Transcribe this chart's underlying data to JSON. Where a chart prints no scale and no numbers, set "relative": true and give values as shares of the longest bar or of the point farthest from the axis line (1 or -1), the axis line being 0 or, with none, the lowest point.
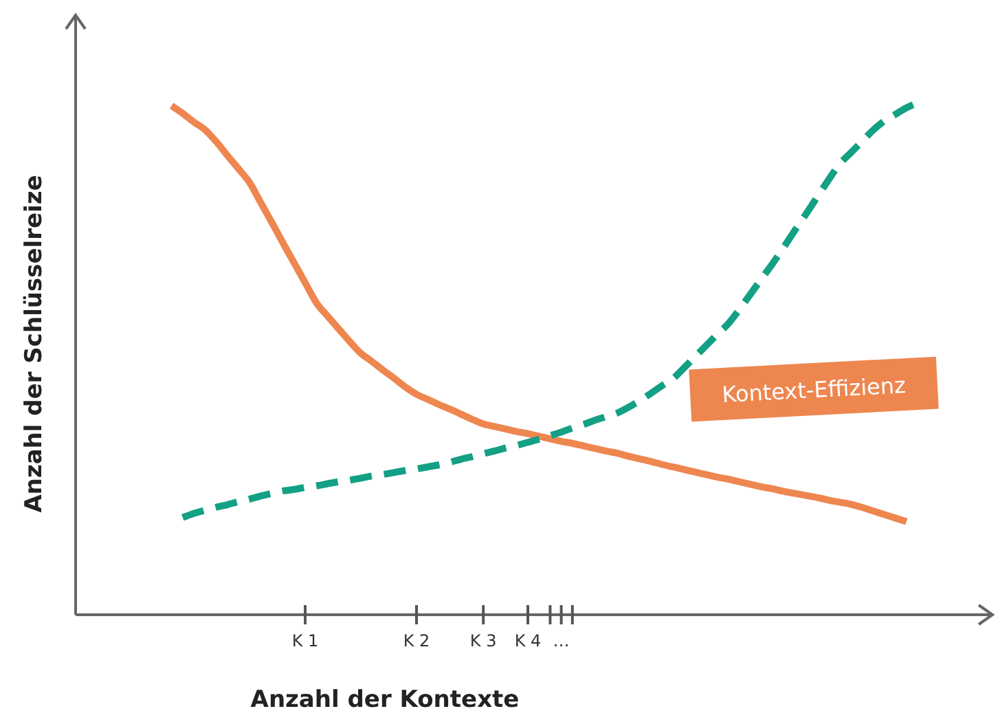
{
  "chart_data": {
    "type": "line",
    "relative": true,
    "xlabel": "Anzahl der Kontexte",
    "ylabel": "Anzahl der Schlüsselreize",
    "categories": [
      null,
      null,
      null,
      null,
      null,
      null,
      null,
      null,
      null,
      null,
      null,
      null,
      null,
      null,
      null,
      null,
      null,
      null,
      null,
      null,
      "K 1",
      null,
      null,
      null,
      null,
      null,
      null,
      null,
      null,
      null,
      "K 2",
      null,
      null,
      null,
      null,
      null,
      "K 3",
      null,
      null,
      null,
      "K 4",
      null,
      null,
      "…",
      null,
      null,
      null,
      null,
      null,
      null,
      null,
      null,
      null,
      null,
      null,
      null,
      null,
      null,
      null,
      null,
      null,
      null,
      null,
      null,
      null,
      null,
      null,
      null,
      null,
      null,
      null,
      null,
      null,
      null,
      null,
      null,
      null,
      null,
      null,
      null
    ],
    "tick_labels": "x",
    "grid": false,
    "series": [
      {
        "name": "Kontext-Effizienz",
        "color": "#ee8650",
        "line_style": "solid",
        "values": [
          null,
          null,
          null,
          null,
          null,
          null,
          null,
          null,
          0.995,
          0.98,
          0.963,
          0.948,
          0.925,
          0.898,
          0.872,
          0.845,
          0.806,
          0.767,
          0.727,
          0.688,
          0.649,
          0.61,
          0.584,
          0.559,
          0.534,
          0.511,
          0.495,
          0.478,
          0.462,
          0.445,
          0.431,
          0.421,
          0.411,
          0.402,
          0.392,
          0.382,
          0.373,
          0.368,
          0.363,
          0.358,
          0.354,
          0.349,
          0.344,
          0.339,
          0.335,
          0.33,
          0.325,
          0.32,
          0.316,
          0.31,
          0.305,
          0.3,
          0.294,
          0.289,
          0.284,
          0.279,
          0.274,
          0.269,
          0.265,
          0.26,
          0.255,
          0.25,
          0.246,
          0.241,
          0.237,
          0.233,
          0.229,
          0.224,
          0.22,
          0.216,
          0.21,
          0.203,
          0.196,
          0.189,
          0.182,
          null,
          null,
          null,
          null,
          null
        ]
      },
      {
        "color": "#13a085",
        "line_style": "dashed",
        "values": [
          null,
          null,
          null,
          null,
          null,
          null,
          null,
          null,
          null,
          0.19,
          0.198,
          0.204,
          0.21,
          0.215,
          0.221,
          0.226,
          0.232,
          0.237,
          0.242,
          0.245,
          0.249,
          0.252,
          0.256,
          0.26,
          0.263,
          0.267,
          0.271,
          0.274,
          0.278,
          0.282,
          0.285,
          0.289,
          0.293,
          0.298,
          0.304,
          0.309,
          0.315,
          0.32,
          0.326,
          0.331,
          0.337,
          0.343,
          0.35,
          0.357,
          0.365,
          0.372,
          0.38,
          0.387,
          0.394,
          0.405,
          0.418,
          0.432,
          0.447,
          0.461,
          0.482,
          0.504,
          0.526,
          0.548,
          0.569,
          0.597,
          0.627,
          0.657,
          0.687,
          0.719,
          0.752,
          0.784,
          0.817,
          0.85,
          0.881,
          0.903,
          0.925,
          0.947,
          0.965,
          0.978,
          0.991,
          1,
          null,
          null,
          null,
          null
        ]
      }
    ]
  }
}
